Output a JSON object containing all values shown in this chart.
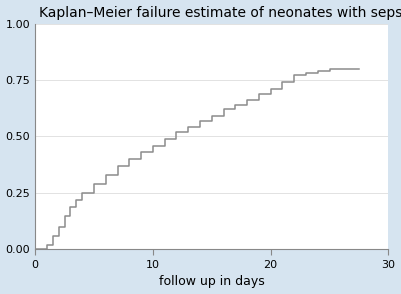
{
  "title": "Kaplan–Meier failure estimate of neonates with sepsis",
  "xlabel": "follow up in days",
  "xlim": [
    0,
    30
  ],
  "ylim": [
    0,
    1.0
  ],
  "xticks": [
    0,
    10,
    20,
    30
  ],
  "yticks": [
    0.0,
    0.25,
    0.5,
    0.75,
    1.0
  ],
  "line_color": "#8c8c8c",
  "background_color": "#d6e4f0",
  "plot_bg_color": "#ffffff",
  "step_x": [
    0,
    0.5,
    1,
    1.5,
    2,
    2.5,
    3,
    3.5,
    4,
    5,
    6,
    7,
    8,
    9,
    10,
    11,
    12,
    13,
    14,
    15,
    16,
    17,
    18,
    19,
    20,
    21,
    22,
    23,
    24,
    25,
    27.5
  ],
  "step_y": [
    0.0,
    0.0,
    0.02,
    0.06,
    0.1,
    0.15,
    0.19,
    0.22,
    0.25,
    0.29,
    0.33,
    0.37,
    0.4,
    0.43,
    0.46,
    0.49,
    0.52,
    0.54,
    0.57,
    0.59,
    0.62,
    0.64,
    0.66,
    0.69,
    0.71,
    0.74,
    0.77,
    0.78,
    0.79,
    0.8,
    0.8
  ],
  "title_fontsize": 10,
  "tick_fontsize": 8,
  "label_fontsize": 9,
  "line_width": 1.1
}
